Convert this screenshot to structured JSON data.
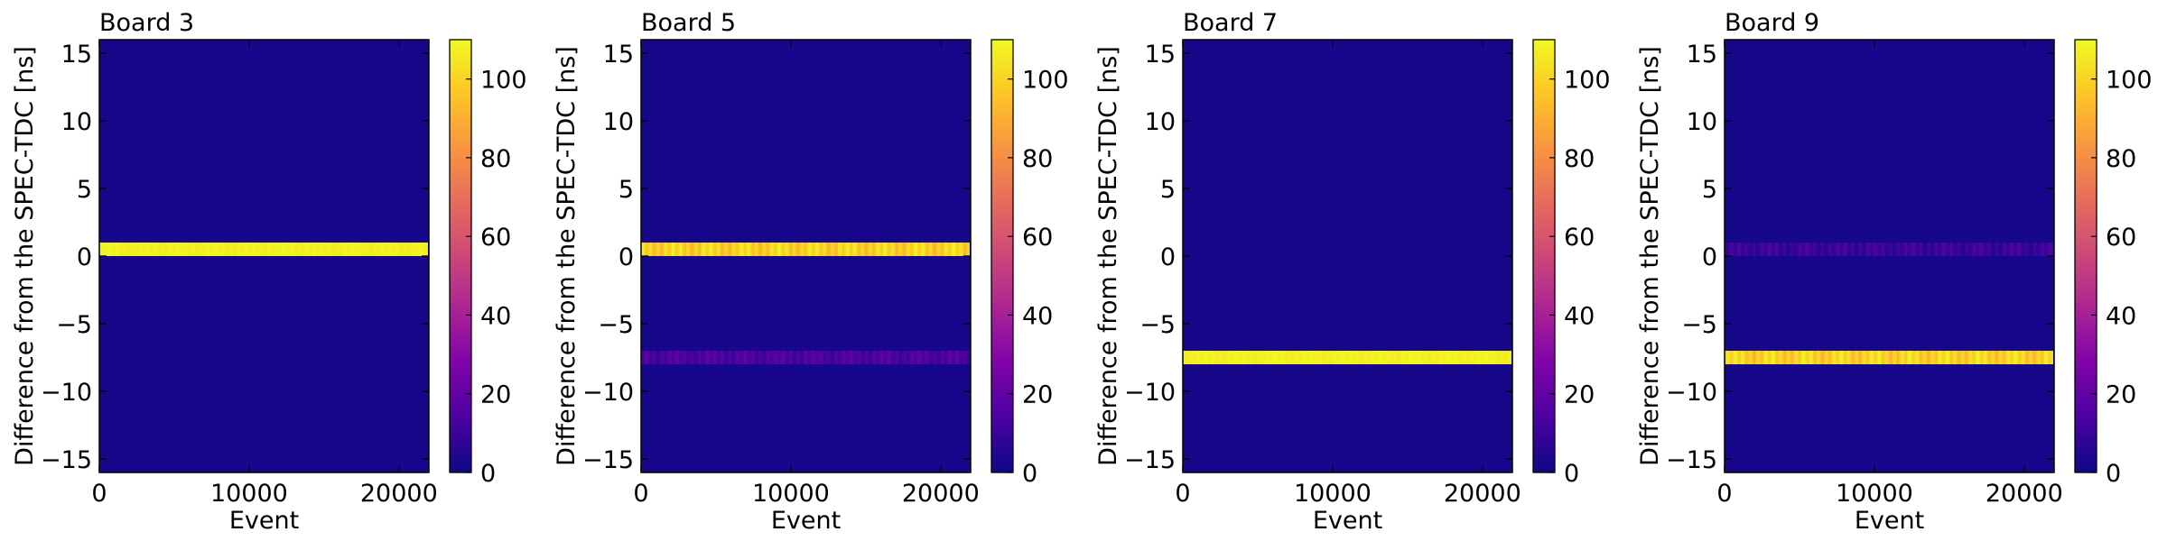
{
  "chart_data": [
    {
      "type": "heatmap",
      "title": "Board 3",
      "xlabel": "Event",
      "ylabel": "Difference from the SPEC-TDC [ns]",
      "xlim": [
        0,
        22000
      ],
      "ylim": [
        -16,
        16
      ],
      "xticks": [
        0,
        10000,
        20000
      ],
      "yticks": [
        -15,
        -10,
        -5,
        0,
        5,
        10,
        15
      ],
      "colormap": "plasma",
      "clim": [
        0,
        110
      ],
      "colorbar_ticks": [
        0,
        20,
        40,
        60,
        80,
        100
      ],
      "background_count": 2,
      "bands": [
        {
          "y_low": 0,
          "y_high": 1,
          "x_start": 0,
          "x_end": 21900,
          "count": 108,
          "variation": 2
        }
      ]
    },
    {
      "type": "heatmap",
      "title": "Board 5",
      "xlabel": "Event",
      "ylabel": "Difference from the SPEC-TDC [ns]",
      "xlim": [
        0,
        22000
      ],
      "ylim": [
        -16,
        16
      ],
      "xticks": [
        0,
        10000,
        20000
      ],
      "yticks": [
        -15,
        -10,
        -5,
        0,
        5,
        10,
        15
      ],
      "colormap": "plasma",
      "clim": [
        0,
        110
      ],
      "colorbar_ticks": [
        0,
        20,
        40,
        60,
        80,
        100
      ],
      "background_count": 2,
      "bands": [
        {
          "y_low": 0,
          "y_high": 1,
          "x_start": 0,
          "x_end": 21900,
          "count": 100,
          "variation": 10
        },
        {
          "y_low": -8,
          "y_high": -7,
          "x_start": 0,
          "x_end": 21900,
          "count": 14,
          "variation": 6
        }
      ]
    },
    {
      "type": "heatmap",
      "title": "Board 7",
      "xlabel": "Event",
      "ylabel": "Difference from the SPEC-TDC [ns]",
      "xlim": [
        0,
        22000
      ],
      "ylim": [
        -16,
        16
      ],
      "xticks": [
        0,
        10000,
        20000
      ],
      "yticks": [
        -15,
        -10,
        -5,
        0,
        5,
        10,
        15
      ],
      "colormap": "plasma",
      "clim": [
        0,
        110
      ],
      "colorbar_ticks": [
        0,
        20,
        40,
        60,
        80,
        100
      ],
      "background_count": 2,
      "bands": [
        {
          "y_low": -8,
          "y_high": -7,
          "x_start": 0,
          "x_end": 21900,
          "count": 108,
          "variation": 2
        }
      ]
    },
    {
      "type": "heatmap",
      "title": "Board 9",
      "xlabel": "Event",
      "ylabel": "Difference from the SPEC-TDC [ns]",
      "xlim": [
        0,
        22000
      ],
      "ylim": [
        -16,
        16
      ],
      "xticks": [
        0,
        10000,
        20000
      ],
      "yticks": [
        -15,
        -10,
        -5,
        0,
        5,
        10,
        15
      ],
      "colormap": "plasma",
      "clim": [
        0,
        110
      ],
      "colorbar_ticks": [
        0,
        20,
        40,
        60,
        80,
        100
      ],
      "background_count": 2,
      "bands": [
        {
          "y_low": 0,
          "y_high": 1,
          "x_start": 0,
          "x_end": 21900,
          "count": 10,
          "variation": 6
        },
        {
          "y_low": -8,
          "y_high": -7,
          "x_start": 0,
          "x_end": 21900,
          "count": 100,
          "variation": 10
        }
      ]
    }
  ]
}
